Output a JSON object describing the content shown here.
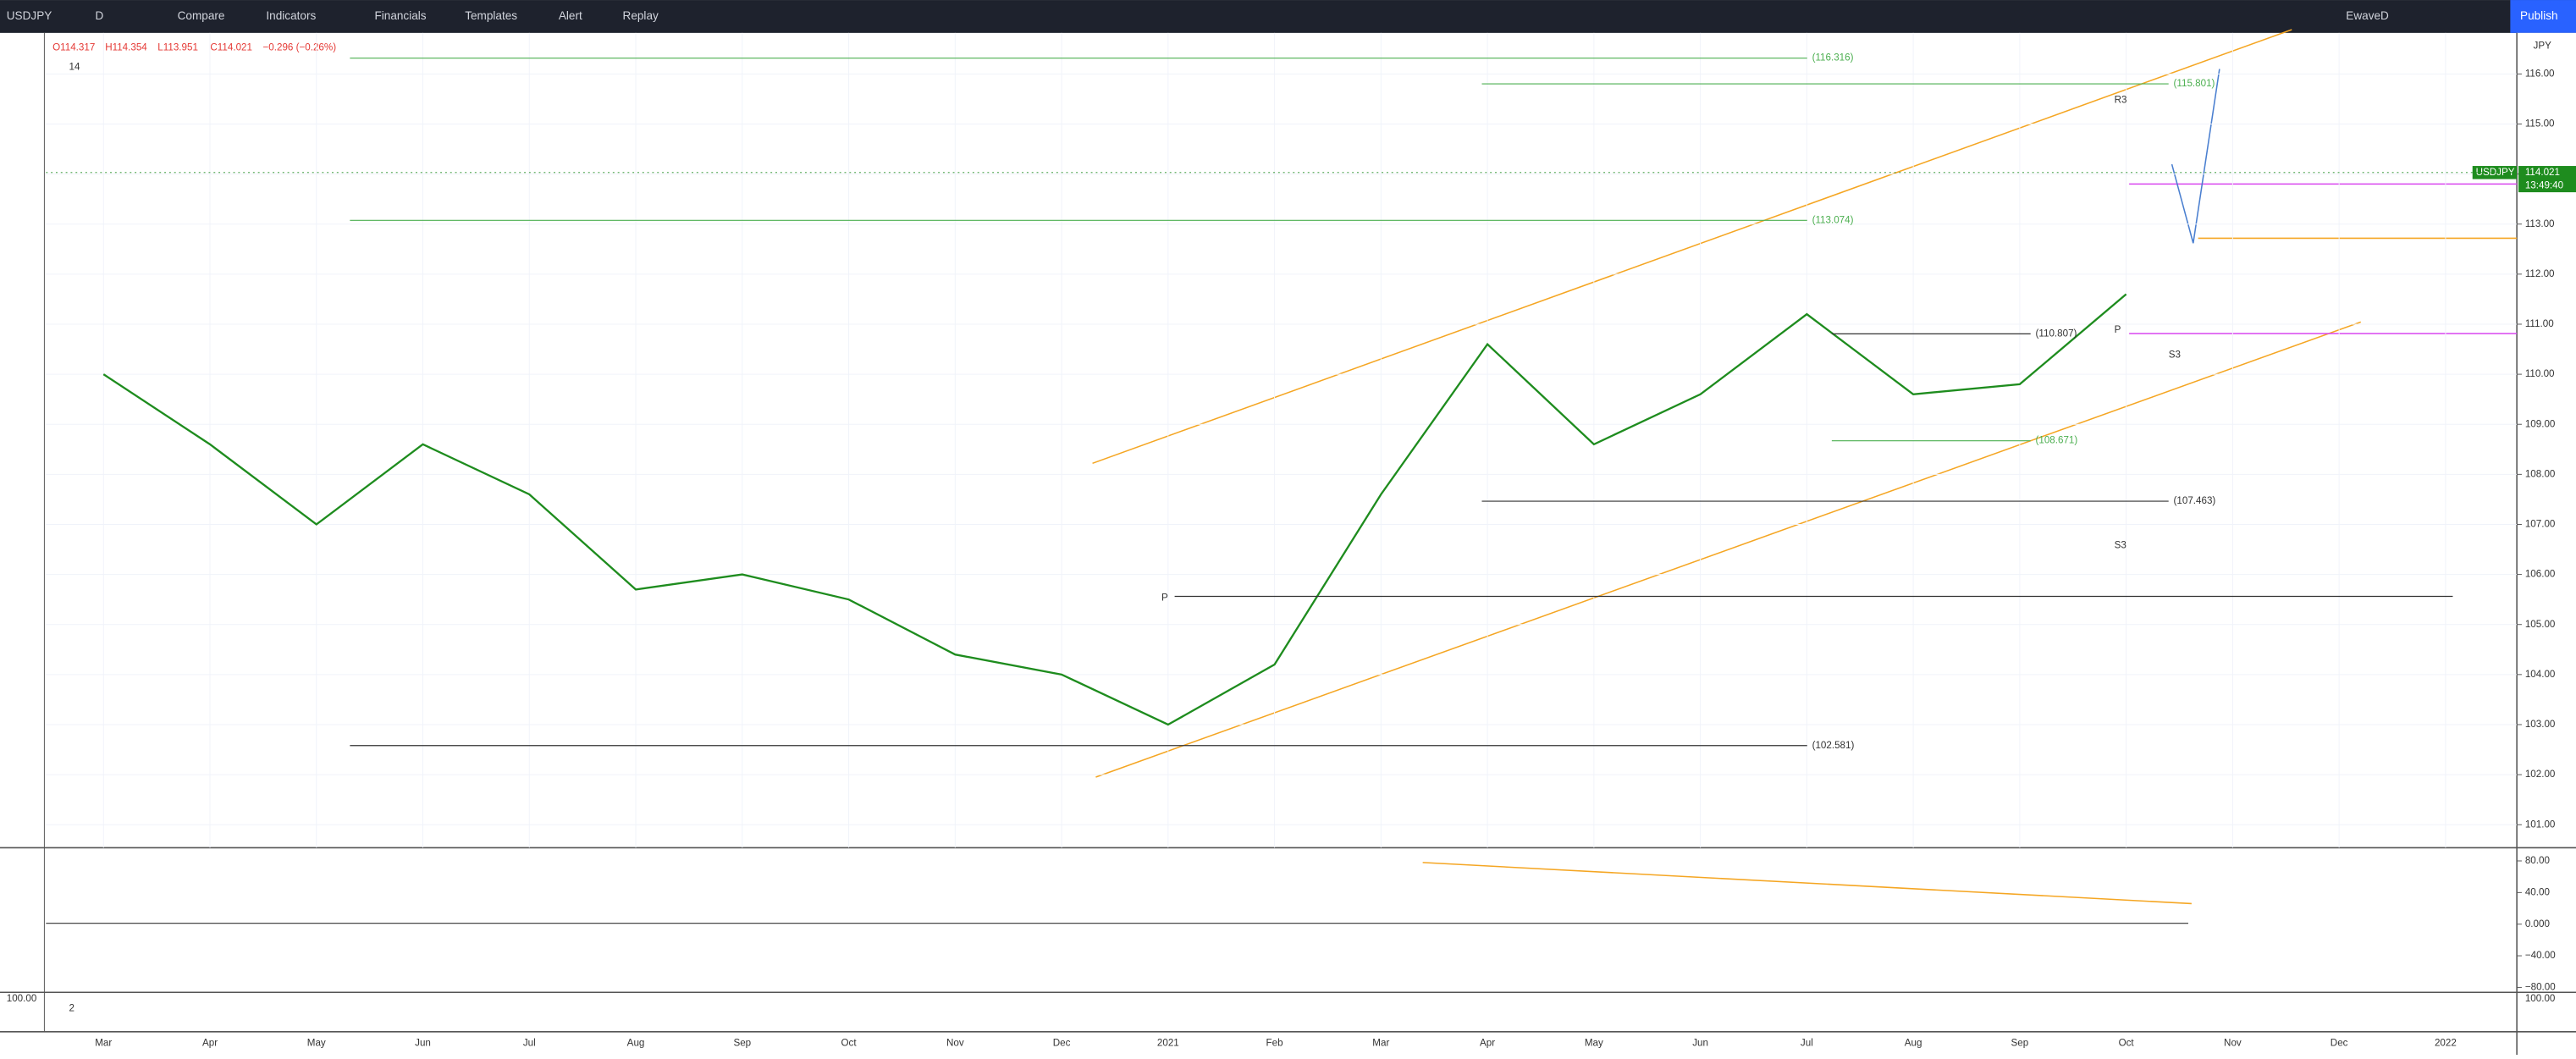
{
  "toolbar": {
    "symbol": "USDJPY",
    "interval": "D",
    "items": [
      "Compare",
      "Indicators",
      "Financials",
      "Templates",
      "Alert",
      "Replay"
    ],
    "layout": "EwaveD",
    "publish": "Publish"
  },
  "legend": {
    "open": "O114.317",
    "high": "H114.354",
    "low": "L113.951",
    "close": "C114.021",
    "change": "−0.296 (−0.26%)",
    "count": "14"
  },
  "price_tag": {
    "symbol": "USDJPY",
    "price": "114.021",
    "countdown": "13:49:40",
    "currency": "JPY"
  },
  "chart_data": {
    "type": "line",
    "categories": [
      "Mar",
      "Apr",
      "May",
      "Jun",
      "Jul",
      "Aug",
      "Sep",
      "Oct",
      "Nov",
      "Dec",
      "2021",
      "Feb",
      "Mar",
      "Apr",
      "May",
      "Jun",
      "Jul",
      "Aug",
      "Sep",
      "Oct",
      "Nov",
      "Dec",
      "2022"
    ],
    "series": [
      {
        "name": "USDJPY",
        "color": "#1e8c1e",
        "values": [
          110.0,
          108.6,
          107.0,
          108.6,
          107.6,
          105.7,
          106.0,
          105.5,
          104.4,
          104.0,
          103.0,
          104.2,
          107.6,
          110.6,
          108.6,
          109.6,
          111.2,
          109.6,
          109.8,
          111.6,
          null,
          null,
          null
        ]
      }
    ],
    "ylim": [
      100.54,
      116.82
    ],
    "yticks": [
      {
        "value": 101,
        "label": "101.00"
      },
      {
        "value": 102,
        "label": "102.00"
      },
      {
        "value": 103,
        "label": "103.00"
      },
      {
        "value": 104,
        "label": "104.00"
      },
      {
        "value": 105,
        "label": "105.00"
      },
      {
        "value": 106,
        "label": "106.00"
      },
      {
        "value": 107,
        "label": "107.00"
      },
      {
        "value": 108,
        "label": "108.00"
      },
      {
        "value": 109,
        "label": "109.00"
      },
      {
        "value": 110,
        "label": "110.00"
      },
      {
        "value": 111,
        "label": "111.00"
      },
      {
        "value": 112,
        "label": "112.00"
      },
      {
        "value": 113,
        "label": "113.00"
      },
      {
        "value": 114,
        "label": "114.00"
      },
      {
        "value": 115,
        "label": "115.00"
      },
      {
        "value": 116,
        "label": "116.00"
      }
    ],
    "grid": true,
    "levels": [
      {
        "value": 116.316,
        "label": "(116.316)"
      },
      {
        "value": 115.801,
        "label": "(115.801)"
      },
      {
        "value": 113.074,
        "label": "(113.074)"
      },
      {
        "value": 110.807,
        "label": "(110.807)"
      },
      {
        "value": 108.671,
        "label": "(108.671)"
      },
      {
        "value": 107.463,
        "label": "(107.463)"
      },
      {
        "value": 102.581,
        "label": "(102.581)"
      }
    ],
    "pivot_markers": [
      "R3",
      "P",
      "S3",
      "P",
      "S3"
    ]
  },
  "oscillator": {
    "ylim": [
      -86.2,
      92.5
    ],
    "yticks": [
      {
        "value": 80,
        "label": "80.00"
      },
      {
        "value": 40,
        "label": "40.00"
      },
      {
        "value": 0,
        "label": "0.000"
      },
      {
        "value": -40,
        "label": "−40.00"
      },
      {
        "value": -80,
        "label": "−80.00"
      }
    ]
  },
  "lower_pane": {
    "tick": "100.00",
    "count": "2"
  }
}
